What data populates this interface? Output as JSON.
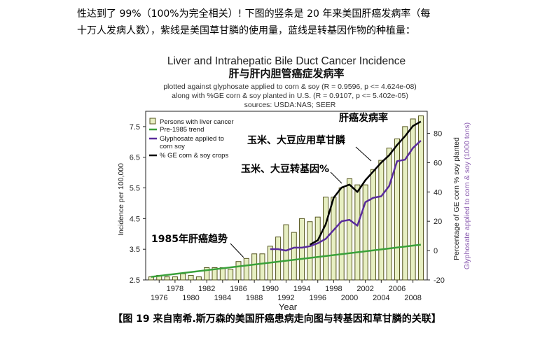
{
  "intro": {
    "line1": "性达到了 99%（100%为完全相关）! 下图的竖条是 20 年来美国肝癌发病率（每",
    "line2": "十万人发病人数），紫线是美国草甘膦的使用量，蓝线是转基因作物的种植量："
  },
  "caption": "【图 19 来自南希.斯万森的美国肝癌患病走向图与转基因和草甘膦的关联】",
  "colors": {
    "bar_fill": "#e7efc2",
    "bar_stroke": "#55551f",
    "trend": "#3aa13a",
    "glyphosate": "#5a2c9c",
    "ge": "#000000",
    "right_axis_label2": "#8a5bb0"
  },
  "chart_data": {
    "type": "bar",
    "title": "Liver and Intrahepatic Bile Duct Cancer Incidence",
    "title_cn": "肝与肝内胆管癌症发病率",
    "subtitle_lines": [
      "plotted against glyphosate applied to corn & soy  (R = 0.9596, p <= 4.624e-08)",
      "along with %GE corn & soy planted in U.S. (R = 0.9107, p <= 5.402e-05)",
      "sources: USDA:NAS; SEER"
    ],
    "xlabel": "Year",
    "ylabel": "Incidence per 100,000",
    "y2label_a": "Percentage of GE corn % soy planted",
    "y2label_b": "Glyphosate applied to corn & soy (1000 tons)",
    "ylim": [
      2.5,
      8.0
    ],
    "y2lim": [
      -20,
      95
    ],
    "yticks": [
      "2.5",
      "3.5",
      "4.5",
      "5.5",
      "6.5",
      "7.5"
    ],
    "y2ticks": [
      "-20",
      "0",
      "20",
      "40",
      "60",
      "80"
    ],
    "xticks_upper": [
      "1978",
      "1982",
      "1986",
      "1990",
      "1994",
      "1998",
      "2002",
      "2006"
    ],
    "xticks_lower": [
      "1976",
      "1980",
      "1984",
      "1988",
      "1992",
      "1996",
      "2000",
      "2004",
      "2008"
    ],
    "categories": [
      1975,
      1976,
      1977,
      1978,
      1979,
      1980,
      1981,
      1982,
      1983,
      1984,
      1985,
      1986,
      1987,
      1988,
      1989,
      1990,
      1991,
      1992,
      1993,
      1994,
      1995,
      1996,
      1997,
      1998,
      1999,
      2000,
      2001,
      2002,
      2003,
      2004,
      2005,
      2006,
      2007,
      2008,
      2009
    ],
    "series": [
      {
        "name": "Persons with liver cancer",
        "type": "bar",
        "values": [
          2.6,
          2.65,
          2.6,
          2.6,
          2.7,
          2.65,
          2.6,
          2.9,
          2.9,
          2.9,
          2.85,
          3.1,
          3.2,
          3.35,
          3.35,
          3.6,
          3.9,
          4.3,
          4.05,
          4.5,
          4.4,
          4.55,
          5.2,
          5.2,
          5.5,
          5.8,
          5.6,
          5.6,
          6.1,
          6.4,
          6.8,
          7.1,
          7.5,
          7.75,
          7.85
        ]
      },
      {
        "name": "Pre-1985 trend",
        "type": "line",
        "x": [
          1975,
          2009
        ],
        "values": [
          2.6,
          3.65
        ]
      },
      {
        "name": "Glyphosate applied to corn  soy",
        "type": "line",
        "x": [
          1990,
          1991,
          1992,
          1993,
          1994,
          1995,
          1996,
          1997,
          1998,
          1999,
          2000,
          2001,
          2002,
          2003,
          2004,
          2005,
          2006,
          2007,
          2008,
          2009
        ],
        "values": [
          1,
          1,
          0,
          2,
          2,
          3,
          5,
          8,
          14,
          20,
          21,
          17,
          33,
          36,
          37,
          44,
          61,
          62,
          70,
          75
        ]
      },
      {
        "name": "% GE corn & soy crops",
        "type": "line",
        "x": [
          1995,
          1996,
          1997,
          1998,
          1999,
          2000,
          2001,
          2002,
          2003,
          2004,
          2005,
          2006,
          2007,
          2008,
          2009
        ],
        "values": [
          4,
          7,
          18,
          36,
          43,
          45,
          40,
          48,
          54,
          60,
          65,
          72,
          78,
          85,
          88
        ]
      }
    ],
    "legend_position": "top-left",
    "annotations": [
      {
        "text": "肝癌发病率"
      },
      {
        "text": "玉米、大豆应用草甘膦"
      },
      {
        "text": "玉米、大豆转基因%"
      },
      {
        "text": "1985年肝癌趋势"
      }
    ]
  }
}
